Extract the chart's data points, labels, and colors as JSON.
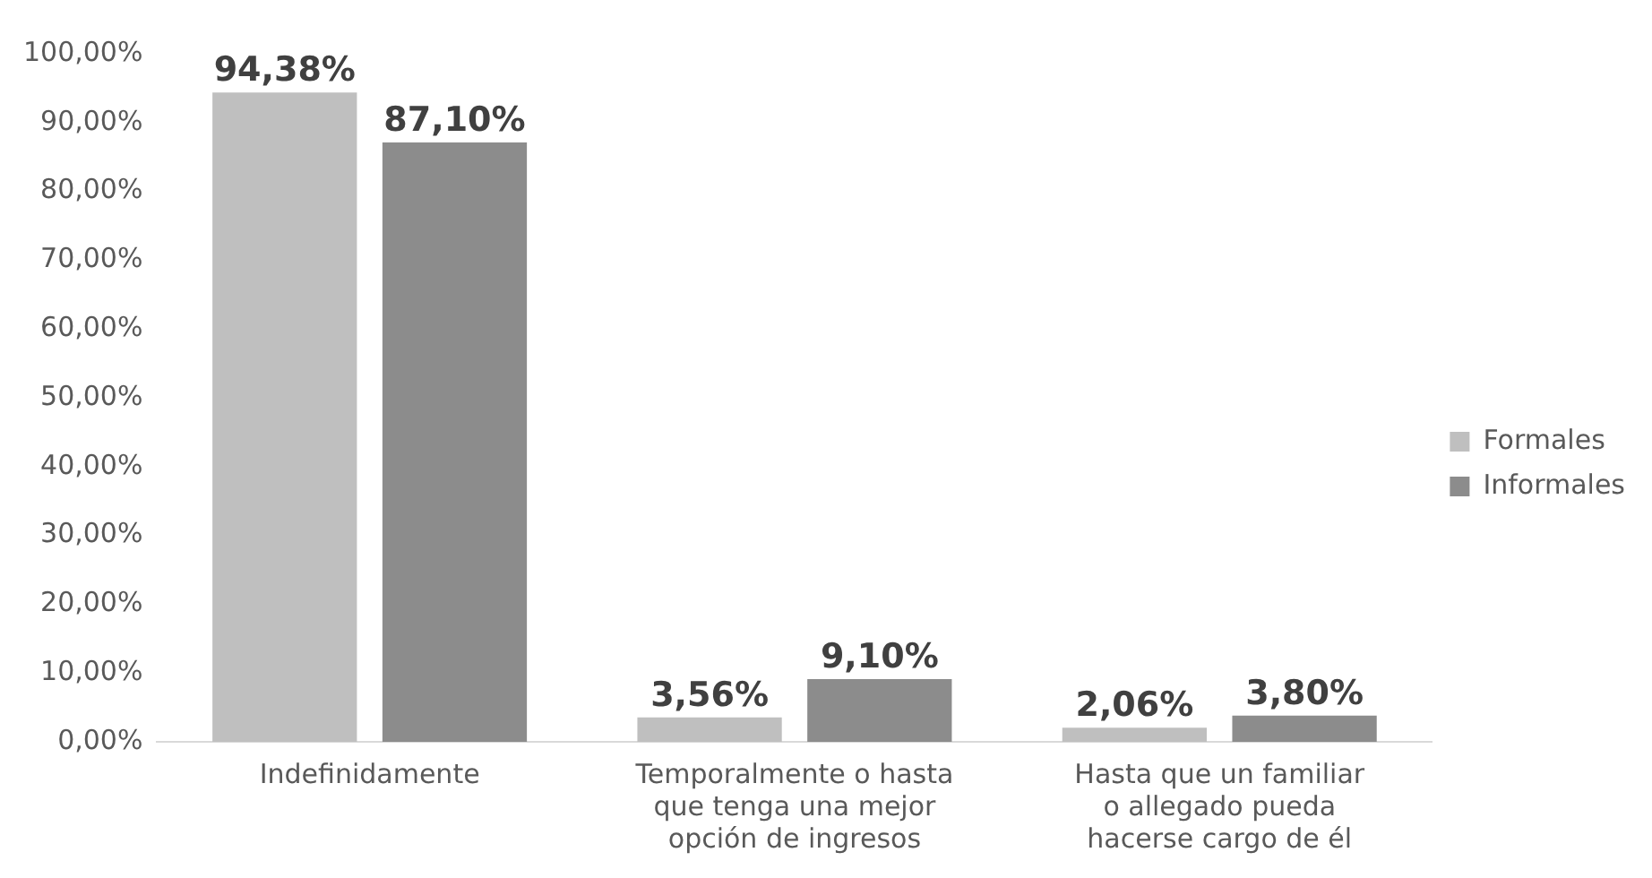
{
  "chart_data": {
    "type": "bar",
    "categories": [
      "Indefinidamente",
      "Temporalmente o hasta que tenga una mejor opción de ingresos",
      "Hasta que un familiar o allegado pueda hacerse cargo de él"
    ],
    "series": [
      {
        "name": "Formales",
        "color": "#bfbfbf",
        "values": [
          94.38,
          3.56,
          2.06
        ],
        "value_labels": [
          "94,38%",
          "3,56%",
          "2,06%"
        ]
      },
      {
        "name": "Informales",
        "color": "#8c8c8c",
        "values": [
          87.1,
          9.1,
          3.8
        ],
        "value_labels": [
          "87,10%",
          "9,10%",
          "3,80%"
        ]
      }
    ],
    "ylim": [
      0,
      100
    ],
    "yticks": [
      {
        "value": 0,
        "label": "0,00%"
      },
      {
        "value": 10,
        "label": "10,00%"
      },
      {
        "value": 20,
        "label": "20,00%"
      },
      {
        "value": 30,
        "label": "30,00%"
      },
      {
        "value": 40,
        "label": "40,00%"
      },
      {
        "value": 50,
        "label": "50,00%"
      },
      {
        "value": 60,
        "label": "60,00%"
      },
      {
        "value": 70,
        "label": "70,00%"
      },
      {
        "value": 80,
        "label": "80,00%"
      },
      {
        "value": 90,
        "label": "90,00%"
      },
      {
        "value": 100,
        "label": "100,00%"
      }
    ],
    "grid": false,
    "legend": "right"
  }
}
